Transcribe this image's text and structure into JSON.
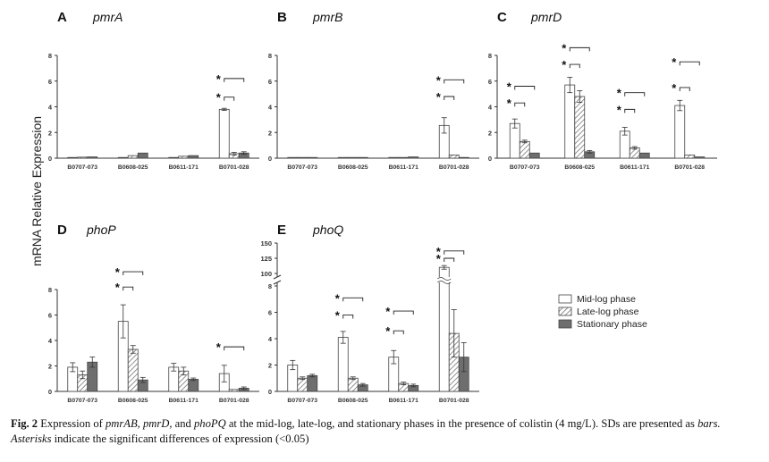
{
  "figure": {
    "ylabel": "mRNA Relative Expression",
    "legend": {
      "placement": "right",
      "entries": [
        "Mid-log phase",
        "Late-log phase",
        "Stationary phase"
      ]
    },
    "caption": {
      "fig_label": "Fig. 2",
      "t1": " Expression of ",
      "g1": "pmrAB, pmrD,",
      "t2": " and ",
      "g2": "phoPQ",
      "t3": " at the mid-log, late-log, and stationary phases in the presence of colistin (4 mg/L). SDs are presented as ",
      "bars": "bars.",
      "t4": " ",
      "asterisks": "Asterisks",
      "t5": " indicate the significant differences of expression (<0.05)"
    }
  },
  "chart_data": [
    {
      "panel": "A",
      "title": "pmrA",
      "type": "bar",
      "categories": [
        "B0707-073",
        "B0608-025",
        "B0611-171",
        "B0701-028"
      ],
      "ylim": [
        0,
        8
      ],
      "yticks": [
        0,
        2,
        4,
        6,
        8
      ],
      "series": [
        {
          "values": [
            0.05,
            0.05,
            0.05,
            3.8
          ],
          "errors": [
            0.02,
            0.02,
            0.02,
            0.08
          ]
        },
        {
          "values": [
            0.08,
            0.2,
            0.15,
            0.35
          ],
          "errors": [
            0.02,
            0.04,
            0.03,
            0.1
          ]
        },
        {
          "values": [
            0.1,
            0.4,
            0.2,
            0.4
          ],
          "errors": [
            0.02,
            0.05,
            0.03,
            0.1
          ]
        }
      ],
      "significance": [
        {
          "cat": 3,
          "from": 0,
          "to": 1,
          "y": 4.75,
          "label": "*"
        },
        {
          "cat": 3,
          "from": 0,
          "to": 2,
          "y": 6.2,
          "label": "*"
        }
      ]
    },
    {
      "panel": "B",
      "title": "pmrB",
      "type": "bar",
      "categories": [
        "B0707-073",
        "B0608-025",
        "B0611-171",
        "B0701-028"
      ],
      "ylim": [
        0,
        8
      ],
      "yticks": [
        0,
        2,
        4,
        6,
        8
      ],
      "series": [
        {
          "values": [
            0.03,
            0.03,
            0.03,
            2.55
          ],
          "errors": [
            0.01,
            0.01,
            0.01,
            0.6
          ]
        },
        {
          "values": [
            0.03,
            0.03,
            0.05,
            0.25
          ],
          "errors": [
            0.01,
            0.01,
            0.01,
            0.05
          ]
        },
        {
          "values": [
            0.03,
            0.05,
            0.1,
            0.05
          ],
          "errors": [
            0.01,
            0.01,
            0.02,
            0.01
          ]
        }
      ],
      "significance": [
        {
          "cat": 3,
          "from": 0,
          "to": 1,
          "y": 4.8,
          "label": "*"
        },
        {
          "cat": 3,
          "from": 0,
          "to": 2,
          "y": 6.1,
          "label": "*"
        }
      ]
    },
    {
      "panel": "C",
      "title": "pmrD",
      "type": "bar",
      "categories": [
        "B0707-073",
        "B0608-025",
        "B0611-171",
        "B0701-028"
      ],
      "ylim": [
        0,
        8
      ],
      "yticks": [
        0,
        2,
        4,
        6,
        8
      ],
      "series": [
        {
          "values": [
            2.7,
            5.7,
            2.1,
            4.1
          ],
          "errors": [
            0.35,
            0.6,
            0.3,
            0.4
          ]
        },
        {
          "values": [
            1.3,
            4.8,
            0.8,
            0.25
          ],
          "errors": [
            0.1,
            0.45,
            0.1,
            0.05
          ]
        },
        {
          "values": [
            0.4,
            0.5,
            0.4,
            0.1
          ],
          "errors": [
            0.05,
            0.1,
            0.05,
            0.02
          ]
        }
      ],
      "significance": [
        {
          "cat": 0,
          "from": 0,
          "to": 1,
          "y": 4.3,
          "label": "*"
        },
        {
          "cat": 0,
          "from": 0,
          "to": 2,
          "y": 5.6,
          "label": "*"
        },
        {
          "cat": 1,
          "from": 0,
          "to": 1,
          "y": 7.3,
          "label": "*"
        },
        {
          "cat": 1,
          "from": 0,
          "to": 2,
          "y": 8.6,
          "label": "*"
        },
        {
          "cat": 2,
          "from": 0,
          "to": 1,
          "y": 3.8,
          "label": "*"
        },
        {
          "cat": 2,
          "from": 0,
          "to": 2,
          "y": 5.1,
          "label": "*"
        },
        {
          "cat": 3,
          "from": 0,
          "to": 1,
          "y": 5.5,
          "label": "*"
        },
        {
          "cat": 3,
          "from": 0,
          "to": 2,
          "y": 7.5,
          "label": "*"
        }
      ]
    },
    {
      "panel": "D",
      "title": "phoP",
      "type": "bar",
      "categories": [
        "B0707-073",
        "B0608-025",
        "B0611-171",
        "B0701-028"
      ],
      "ylim": [
        0,
        8
      ],
      "yticks": [
        0,
        2,
        4,
        6,
        8
      ],
      "series": [
        {
          "values": [
            1.9,
            5.5,
            1.9,
            1.4
          ],
          "errors": [
            0.35,
            1.3,
            0.3,
            0.65
          ]
        },
        {
          "values": [
            1.3,
            3.3,
            1.6,
            0.15
          ],
          "errors": [
            0.3,
            0.3,
            0.3,
            0.05
          ]
        },
        {
          "values": [
            2.3,
            0.9,
            0.95,
            0.25
          ],
          "errors": [
            0.4,
            0.2,
            0.1,
            0.1
          ]
        }
      ],
      "significance": [
        {
          "cat": 1,
          "from": 0,
          "to": 1,
          "y": 8.2,
          "label": "*"
        },
        {
          "cat": 1,
          "from": 0,
          "to": 2,
          "y": 9.4,
          "label": "*"
        },
        {
          "cat": 3,
          "from": 0,
          "to": 2,
          "y": 3.5,
          "label": "*"
        }
      ]
    },
    {
      "panel": "E",
      "title": "phoQ",
      "type": "bar",
      "categories": [
        "B0707-073",
        "B0608-025",
        "B0611-171",
        "B0701-028"
      ],
      "ylim": [
        0,
        150
      ],
      "yticks": [
        0,
        2,
        4,
        6,
        8,
        100,
        125,
        150
      ],
      "axis_break": [
        8,
        100
      ],
      "series": [
        {
          "values": [
            2.0,
            4.1,
            2.6,
            110
          ],
          "errors": [
            0.35,
            0.45,
            0.5,
            3
          ]
        },
        {
          "values": [
            1.0,
            1.0,
            0.6,
            4.4
          ],
          "errors": [
            0.1,
            0.1,
            0.1,
            1.8
          ]
        },
        {
          "values": [
            1.2,
            0.5,
            0.45,
            2.6
          ],
          "errors": [
            0.1,
            0.1,
            0.1,
            1.1
          ]
        }
      ],
      "significance": [
        {
          "cat": 1,
          "from": 0,
          "to": 1,
          "y": 5.8,
          "label": "*"
        },
        {
          "cat": 1,
          "from": 0,
          "to": 2,
          "y": 7.1,
          "label": "*"
        },
        {
          "cat": 2,
          "from": 0,
          "to": 1,
          "y": 4.6,
          "label": "*"
        },
        {
          "cat": 2,
          "from": 0,
          "to": 2,
          "y": 6.1,
          "label": "*"
        },
        {
          "cat": 3,
          "from": 0,
          "to": 1,
          "y": 125,
          "label": "*"
        },
        {
          "cat": 3,
          "from": 0,
          "to": 2,
          "y": 137,
          "label": "*"
        }
      ]
    }
  ]
}
